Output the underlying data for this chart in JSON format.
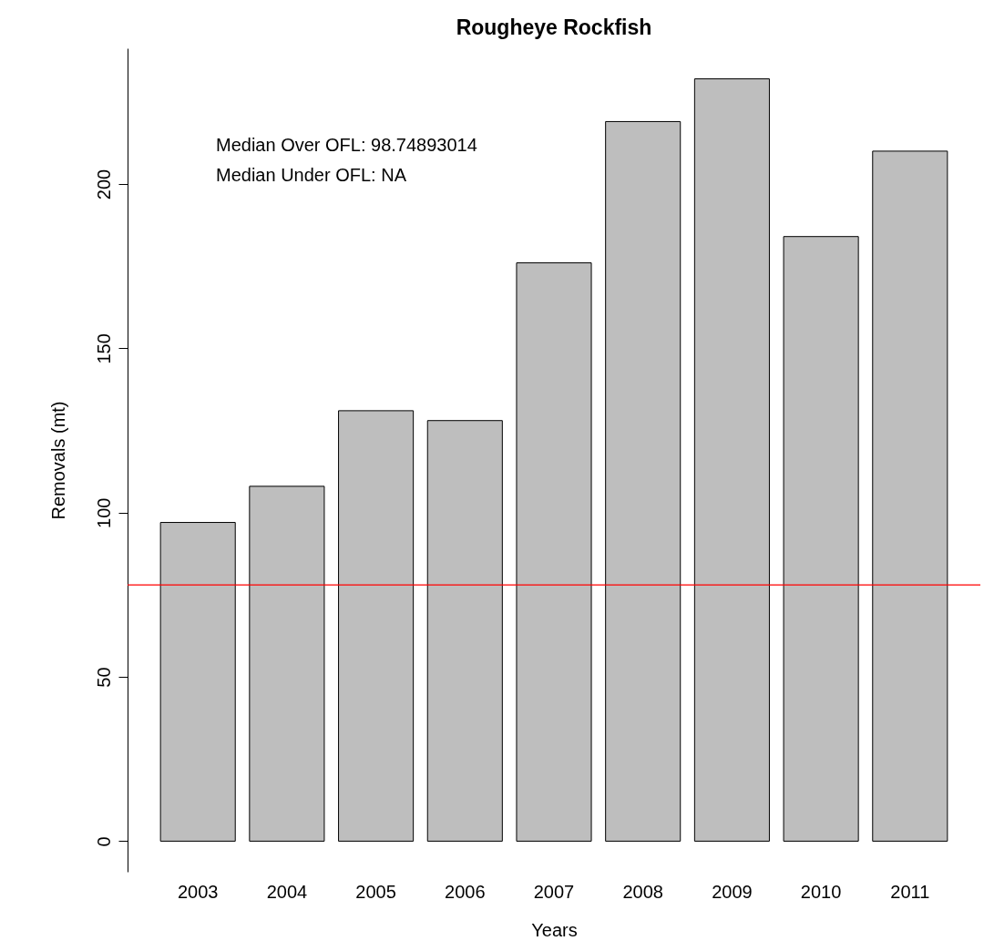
{
  "chart_data": {
    "type": "bar",
    "title": "Rougheye Rockfish",
    "xlabel": "Years",
    "ylabel": "Removals (mt)",
    "categories": [
      "2003",
      "2004",
      "2005",
      "2006",
      "2007",
      "2008",
      "2009",
      "2010",
      "2011"
    ],
    "values": [
      97,
      108,
      131,
      128,
      176,
      219,
      232,
      184,
      210
    ],
    "color": "#bebebe",
    "ylim": [
      -9.3,
      241.3
    ],
    "yticks": [
      0,
      50,
      100,
      150,
      200
    ],
    "grid": false,
    "ref_lines": [
      {
        "axis": "y",
        "value": 78,
        "color": "#ff0000"
      }
    ],
    "annotations": [
      "Median Over OFL: 98.74893014",
      "Median Under OFL: NA"
    ]
  }
}
